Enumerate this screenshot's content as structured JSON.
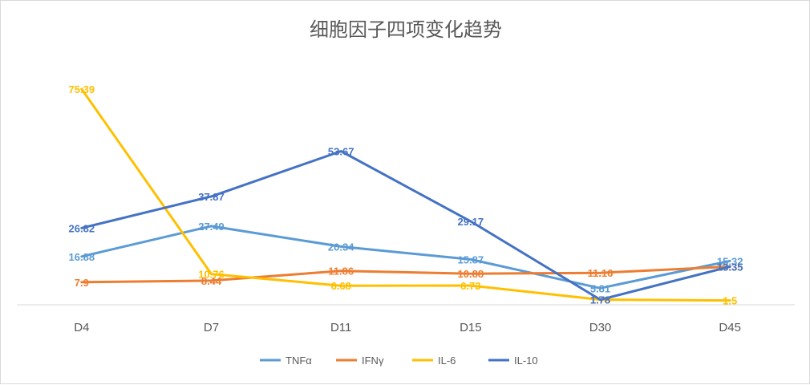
{
  "chart_data": {
    "type": "line",
    "title": "细胞因子四项变化趋势",
    "categories": [
      "D4",
      "D7",
      "D11",
      "D15",
      "D30",
      "D45"
    ],
    "series": [
      {
        "name": "TNFα",
        "color": "#5b9bd5",
        "values": [
          16.88,
          27.49,
          20.34,
          15.87,
          5.81,
          15.32
        ]
      },
      {
        "name": "IFNγ",
        "color": "#ed7d31",
        "values": [
          7.9,
          8.44,
          11.86,
          10.88,
          11.16,
          13.35
        ]
      },
      {
        "name": "IL-6",
        "color": "#ffc000",
        "values": [
          75.39,
          10.76,
          6.68,
          6.73,
          1.78,
          1.5
        ]
      },
      {
        "name": "IL-10",
        "color": "#4472c4",
        "values": [
          26.82,
          37.87,
          53.67,
          29.17,
          1.78,
          13.35
        ]
      }
    ],
    "ylim": [
      0,
      75.39
    ],
    "grid": false,
    "legend": "bottom"
  }
}
